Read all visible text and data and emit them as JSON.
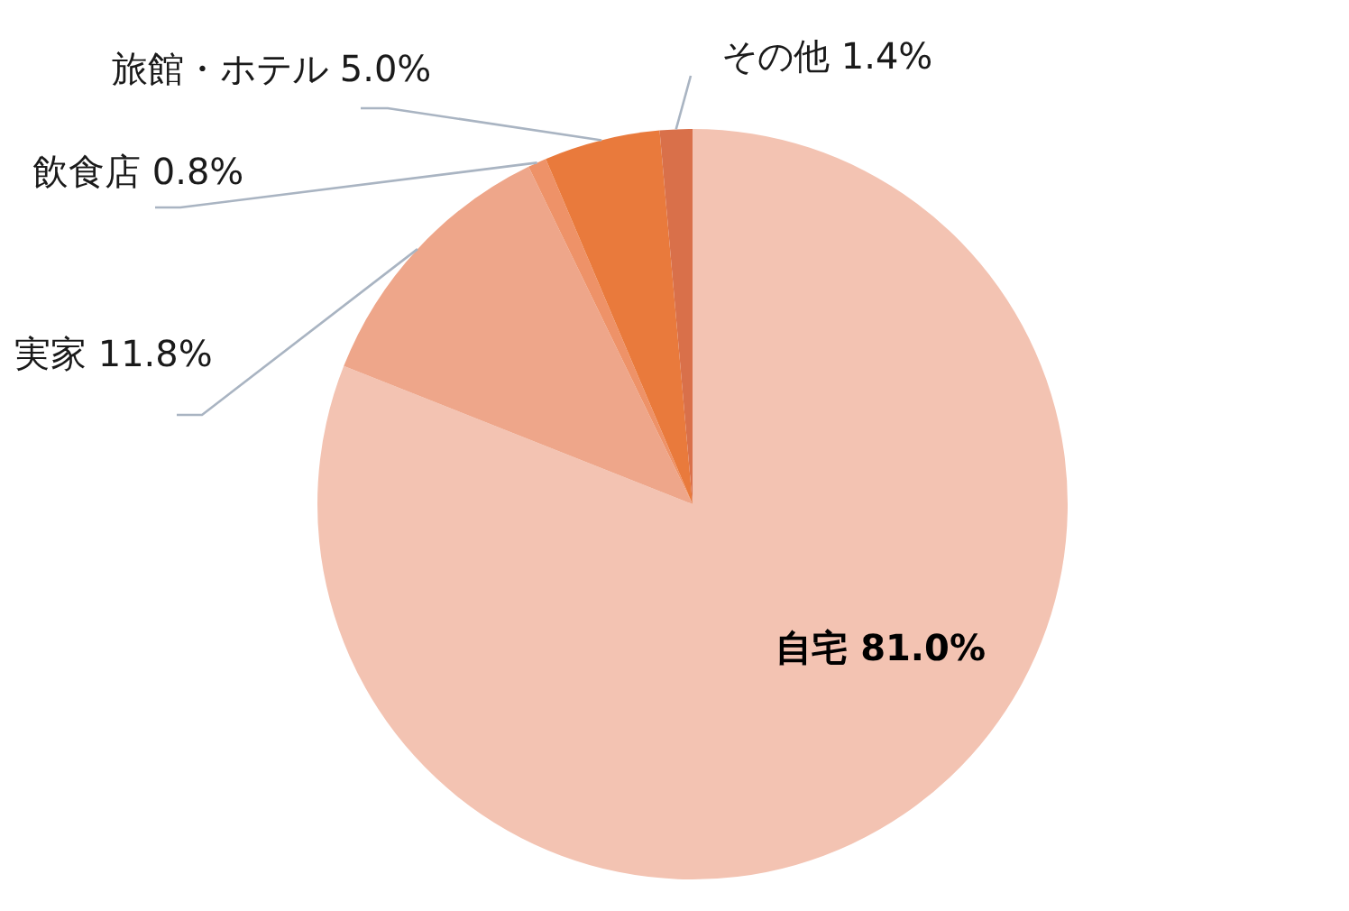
{
  "chart_data": {
    "type": "pie",
    "categories": [
      "自宅",
      "実家",
      "飲食店",
      "旅館・ホテル",
      "その他"
    ],
    "values": [
      81.0,
      11.8,
      0.8,
      5.0,
      1.4
    ],
    "value_labels": [
      "81.0%",
      "11.8%",
      "0.8%",
      "5.0%",
      "1.4%"
    ],
    "colors": [
      "#f3c3b2",
      "#eea68a",
      "#ee9268",
      "#e97a3c",
      "#d9704a"
    ],
    "legend": false
  }
}
